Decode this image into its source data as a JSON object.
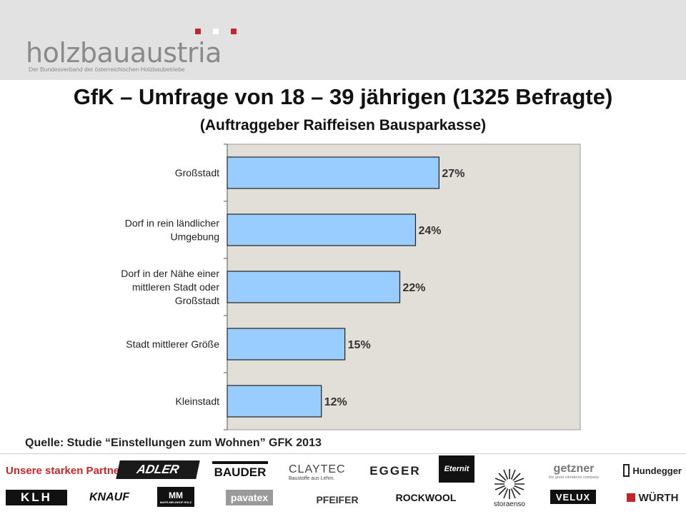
{
  "header": {
    "logo_text": "holzbauaustria",
    "logo_tagline": "Der Bundesverband der österreichischen Holzbaubetriebe",
    "accent_colors": [
      "#c0272d",
      "#ffffff",
      "#c0272d"
    ]
  },
  "title": "GfK – Umfrage von 18 – 39 jährigen (1325 Befragte)",
  "subtitle": "(Auftraggeber Raiffeisen Bausparkasse)",
  "chart_data": {
    "type": "bar",
    "orientation": "horizontal",
    "categories": [
      "Großstadt",
      "Dorf in rein ländlicher Umgebung",
      "Dorf in der Nähe einer mittleren Stadt oder Großstadt",
      "Stadt mittlerer Größe",
      "Kleinstadt"
    ],
    "category_lines": [
      [
        "Großstadt"
      ],
      [
        "Dorf in rein ländlicher",
        "Umgebung"
      ],
      [
        "Dorf in der Nähe einer",
        "mittleren Stadt oder",
        "Großstadt"
      ],
      [
        "Stadt mittlerer Größe"
      ],
      [
        "Kleinstadt"
      ]
    ],
    "values": [
      27,
      24,
      22,
      15,
      12
    ],
    "data_labels": [
      "27%",
      "24%",
      "22%",
      "15%",
      "12%"
    ],
    "bar_color": "#99ccff",
    "plot_background": "#e2dfd8",
    "xlim": [
      0,
      45
    ]
  },
  "source": "Quelle: Studie “Einstellungen zum Wohnen” GFK 2013",
  "partners": {
    "label": "Unsere starken Partner",
    "logos": [
      "ADLER",
      "BAUDER",
      "CLAYTEC",
      "Baustoffe aus Lehm.",
      "EGGER",
      "Eternit",
      "getzner",
      "the good vibrations company",
      "Hundegger",
      "KLH",
      "KNAUF",
      "MM",
      "MAYR-MELNHOF HOLZ",
      "pavatex",
      "PFEIFER",
      "ROCKWOOL",
      "storaenso",
      "VELUX",
      "WÜRTH"
    ]
  }
}
